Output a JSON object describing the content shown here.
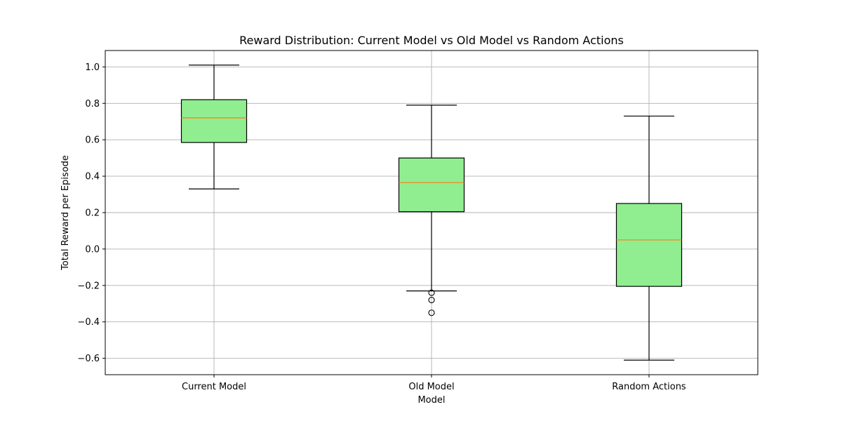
{
  "chart_data": {
    "type": "box",
    "title": "Reward Distribution: Current Model vs Old Model vs Random Actions",
    "xlabel": "Model",
    "ylabel": "Total Reward per Episode",
    "ylim": [
      -0.69,
      1.09
    ],
    "yticks": [
      -0.6,
      -0.4,
      -0.2,
      0.0,
      0.2,
      0.4,
      0.6,
      0.8,
      1.0
    ],
    "ytick_labels": [
      "−0.6",
      "−0.4",
      "−0.2",
      "0.0",
      "0.2",
      "0.4",
      "0.6",
      "0.8",
      "1.0"
    ],
    "grid": true,
    "box_fill": "#90ee90",
    "median_color": "#ff7f0e",
    "edge_color": "#000000",
    "grid_color": "#b0b0b0",
    "categories": [
      "Current Model",
      "Old Model",
      "Random Actions"
    ],
    "boxes": [
      {
        "label": "Current Model",
        "whisker_low": 0.33,
        "q1": 0.585,
        "median": 0.72,
        "q3": 0.82,
        "whisker_high": 1.01,
        "fliers": []
      },
      {
        "label": "Old Model",
        "whisker_low": -0.23,
        "q1": 0.205,
        "median": 0.365,
        "q3": 0.5,
        "whisker_high": 0.79,
        "fliers": [
          -0.24,
          -0.28,
          -0.35
        ]
      },
      {
        "label": "Random Actions",
        "whisker_low": -0.61,
        "q1": -0.205,
        "median": 0.05,
        "q3": 0.25,
        "whisker_high": 0.73,
        "fliers": []
      }
    ]
  }
}
